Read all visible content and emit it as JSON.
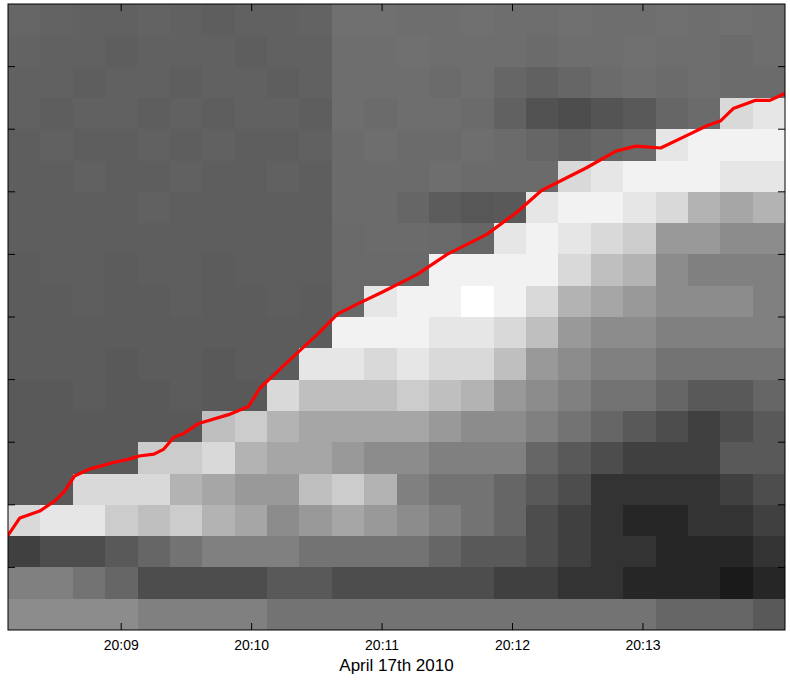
{
  "chart_data": {
    "type": "heatmap",
    "xlabel": "April 17th 2010",
    "xlim": [
      1208.132,
      1214.089
    ],
    "xticks": [
      {
        "value": 1209,
        "label": "20:09"
      },
      {
        "value": 1210,
        "label": "20:10"
      },
      {
        "value": 1211,
        "label": "20:11"
      },
      {
        "value": 1212,
        "label": "20:12"
      },
      {
        "value": 1213,
        "label": "20:13"
      }
    ],
    "ylim": [
      0,
      10
    ],
    "yticks": [
      1,
      2,
      3,
      4,
      5,
      6,
      7,
      8,
      9
    ],
    "tick_labels": "x",
    "zlim": [
      0,
      1
    ],
    "cells": [
      [
        0.4,
        0.39,
        0.38,
        0.38,
        0.39,
        0.38,
        0.37,
        0.38,
        0.38,
        0.39,
        0.44,
        0.44,
        0.43,
        0.43,
        0.44,
        0.43,
        0.43,
        0.44,
        0.43,
        0.43,
        0.44,
        0.43,
        0.44,
        0.43
      ],
      [
        0.39,
        0.38,
        0.38,
        0.37,
        0.38,
        0.38,
        0.38,
        0.37,
        0.38,
        0.38,
        0.43,
        0.43,
        0.44,
        0.43,
        0.43,
        0.43,
        0.42,
        0.43,
        0.43,
        0.44,
        0.43,
        0.43,
        0.42,
        0.43
      ],
      [
        0.38,
        0.38,
        0.37,
        0.38,
        0.38,
        0.37,
        0.38,
        0.38,
        0.37,
        0.38,
        0.43,
        0.43,
        0.43,
        0.42,
        0.43,
        0.4,
        0.38,
        0.4,
        0.42,
        0.43,
        0.42,
        0.43,
        0.42,
        0.42
      ],
      [
        0.38,
        0.37,
        0.38,
        0.38,
        0.37,
        0.38,
        0.37,
        0.38,
        0.38,
        0.37,
        0.43,
        0.42,
        0.43,
        0.43,
        0.42,
        0.38,
        0.32,
        0.3,
        0.33,
        0.35,
        0.4,
        0.42,
        0.85,
        0.9
      ],
      [
        0.37,
        0.38,
        0.37,
        0.37,
        0.38,
        0.37,
        0.38,
        0.37,
        0.37,
        0.38,
        0.42,
        0.43,
        0.42,
        0.42,
        0.43,
        0.42,
        0.4,
        0.38,
        0.4,
        0.42,
        0.9,
        0.95,
        0.95,
        0.95
      ],
      [
        0.37,
        0.37,
        0.38,
        0.37,
        0.37,
        0.38,
        0.37,
        0.37,
        0.38,
        0.37,
        0.42,
        0.42,
        0.42,
        0.43,
        0.42,
        0.42,
        0.42,
        0.85,
        0.9,
        0.95,
        0.95,
        0.95,
        0.9,
        0.9
      ],
      [
        0.37,
        0.37,
        0.37,
        0.37,
        0.38,
        0.37,
        0.37,
        0.37,
        0.37,
        0.37,
        0.42,
        0.42,
        0.4,
        0.36,
        0.34,
        0.35,
        0.9,
        0.95,
        0.95,
        0.9,
        0.85,
        0.7,
        0.65,
        0.7
      ],
      [
        0.37,
        0.37,
        0.37,
        0.37,
        0.37,
        0.37,
        0.37,
        0.37,
        0.37,
        0.37,
        0.41,
        0.42,
        0.42,
        0.41,
        0.4,
        0.9,
        0.95,
        0.9,
        0.85,
        0.8,
        0.6,
        0.6,
        0.55,
        0.55
      ],
      [
        0.36,
        0.37,
        0.37,
        0.36,
        0.37,
        0.37,
        0.36,
        0.37,
        0.37,
        0.37,
        0.41,
        0.41,
        0.41,
        0.95,
        0.95,
        0.95,
        0.95,
        0.85,
        0.75,
        0.7,
        0.55,
        0.5,
        0.5,
        0.5
      ],
      [
        0.36,
        0.36,
        0.37,
        0.36,
        0.36,
        0.37,
        0.36,
        0.36,
        0.37,
        0.36,
        0.41,
        0.9,
        0.95,
        0.95,
        1.0,
        0.95,
        0.85,
        0.7,
        0.65,
        0.6,
        0.55,
        0.55,
        0.55,
        0.5
      ],
      [
        0.36,
        0.36,
        0.36,
        0.36,
        0.36,
        0.36,
        0.36,
        0.36,
        0.36,
        0.36,
        0.95,
        0.95,
        0.95,
        0.9,
        0.9,
        0.85,
        0.75,
        0.6,
        0.55,
        0.55,
        0.5,
        0.5,
        0.5,
        0.5
      ],
      [
        0.36,
        0.36,
        0.36,
        0.35,
        0.36,
        0.36,
        0.35,
        0.36,
        0.36,
        0.9,
        0.9,
        0.85,
        0.9,
        0.85,
        0.85,
        0.75,
        0.6,
        0.55,
        0.5,
        0.5,
        0.45,
        0.45,
        0.45,
        0.45
      ],
      [
        0.35,
        0.35,
        0.36,
        0.35,
        0.35,
        0.36,
        0.35,
        0.35,
        0.85,
        0.75,
        0.75,
        0.75,
        0.8,
        0.75,
        0.7,
        0.6,
        0.55,
        0.5,
        0.45,
        0.45,
        0.4,
        0.35,
        0.35,
        0.4
      ],
      [
        0.35,
        0.35,
        0.35,
        0.35,
        0.35,
        0.35,
        0.75,
        0.8,
        0.7,
        0.65,
        0.65,
        0.65,
        0.65,
        0.6,
        0.55,
        0.55,
        0.5,
        0.45,
        0.4,
        0.35,
        0.3,
        0.25,
        0.3,
        0.35
      ],
      [
        0.35,
        0.35,
        0.35,
        0.35,
        0.8,
        0.8,
        0.85,
        0.7,
        0.65,
        0.65,
        0.6,
        0.55,
        0.55,
        0.5,
        0.5,
        0.5,
        0.4,
        0.35,
        0.3,
        0.25,
        0.25,
        0.25,
        0.35,
        0.35
      ],
      [
        0.35,
        0.35,
        0.85,
        0.85,
        0.85,
        0.7,
        0.65,
        0.6,
        0.6,
        0.75,
        0.8,
        0.7,
        0.5,
        0.45,
        0.45,
        0.4,
        0.35,
        0.3,
        0.2,
        0.2,
        0.2,
        0.2,
        0.25,
        0.3
      ],
      [
        0.85,
        0.9,
        0.9,
        0.8,
        0.75,
        0.8,
        0.7,
        0.65,
        0.55,
        0.6,
        0.65,
        0.6,
        0.55,
        0.5,
        0.45,
        0.4,
        0.3,
        0.25,
        0.2,
        0.15,
        0.15,
        0.2,
        0.2,
        0.25
      ],
      [
        0.25,
        0.3,
        0.3,
        0.35,
        0.4,
        0.45,
        0.5,
        0.5,
        0.5,
        0.45,
        0.45,
        0.45,
        0.45,
        0.4,
        0.35,
        0.35,
        0.3,
        0.25,
        0.2,
        0.2,
        0.15,
        0.15,
        0.15,
        0.2
      ],
      [
        0.5,
        0.5,
        0.45,
        0.4,
        0.3,
        0.3,
        0.3,
        0.3,
        0.35,
        0.35,
        0.3,
        0.3,
        0.3,
        0.3,
        0.3,
        0.25,
        0.25,
        0.2,
        0.2,
        0.15,
        0.15,
        0.15,
        0.1,
        0.15
      ],
      [
        0.55,
        0.55,
        0.55,
        0.55,
        0.5,
        0.5,
        0.5,
        0.5,
        0.45,
        0.45,
        0.45,
        0.45,
        0.45,
        0.45,
        0.45,
        0.45,
        0.45,
        0.45,
        0.45,
        0.45,
        0.4,
        0.4,
        0.4,
        0.35
      ]
    ],
    "series": [
      {
        "type": "line",
        "color": "#ff0000",
        "x": [
          1208.132,
          1208.223,
          1208.375,
          1208.49,
          1208.566,
          1208.642,
          1208.756,
          1208.947,
          1209.061,
          1209.137,
          1209.251,
          1209.327,
          1209.404,
          1209.48,
          1209.594,
          1209.823,
          1209.975,
          1210.066,
          1210.28,
          1210.508,
          1210.66,
          1210.813,
          1211.003,
          1211.27,
          1211.498,
          1211.803,
          1212.031,
          1212.222,
          1212.412,
          1212.564,
          1212.793,
          1212.945,
          1213.136,
          1213.326,
          1213.494,
          1213.593,
          1213.692,
          1213.859,
          1213.973,
          1214.087
        ],
        "values": [
          1.51,
          1.79,
          1.9,
          2.06,
          2.22,
          2.46,
          2.57,
          2.68,
          2.73,
          2.78,
          2.81,
          2.89,
          3.08,
          3.14,
          3.3,
          3.44,
          3.57,
          3.87,
          4.29,
          4.73,
          5.05,
          5.21,
          5.4,
          5.68,
          6.0,
          6.32,
          6.67,
          7.02,
          7.22,
          7.38,
          7.65,
          7.73,
          7.7,
          7.89,
          8.06,
          8.13,
          8.33,
          8.46,
          8.46,
          8.57
        ]
      }
    ]
  }
}
